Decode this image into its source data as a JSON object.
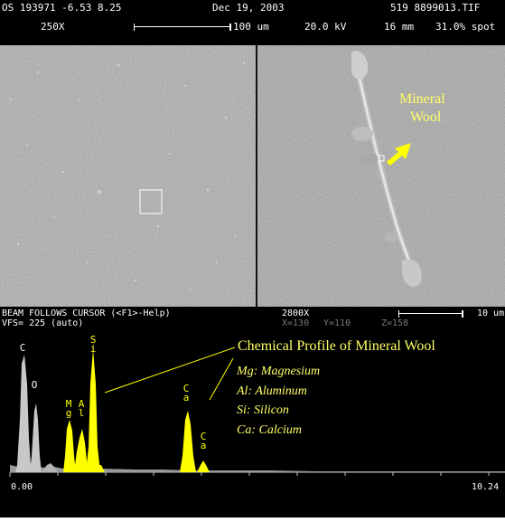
{
  "header": {
    "line1": {
      "left": "OS 193971 -6.53 8.25",
      "date": "Dec 19, 2003",
      "file": "519 8899013.TIF"
    },
    "line2": {
      "magnification": "250X",
      "scale": "100 um",
      "voltage": "20.0 kV",
      "distance": "16 mm",
      "spot": "31.0% spot"
    }
  },
  "right_panel": {
    "annotation_line1": "Mineral",
    "annotation_line2": "Wool"
  },
  "status": {
    "line1": "BEAM FOLLOWS CURSOR (<F1>-Help)",
    "line2": "VFS= 225 (auto)",
    "magnification": "2800X",
    "scale": "10 um",
    "cursor_x": "X=130",
    "cursor_y": "Y=110",
    "cursor_z": "Z=158"
  },
  "spectrum": {
    "title": "Chemical Profile of Mineral Wool",
    "legend": [
      "Mg: Magnesium",
      "Al: Aluminum",
      "Si: Silicon",
      "Ca: Calcium"
    ],
    "peak_labels": {
      "c": "C",
      "o": "O",
      "mg": "M\ng",
      "al": "A\nl",
      "si": "S\ni",
      "ca1": "C\na",
      "ca2": "C\na"
    },
    "axis_min": "0.00",
    "axis_max": "10.24",
    "colors": {
      "peaks": "#ffff00",
      "background": "#000000",
      "light_elements": "#c8c8c8"
    }
  },
  "chart_data": {
    "type": "area",
    "xlim": [
      0.0,
      10.24
    ],
    "peaks": [
      {
        "label": "C",
        "x": 0.28,
        "relative_height": 0.82
      },
      {
        "label": "O",
        "x": 0.53,
        "relative_height": 0.42
      },
      {
        "label": "Mg",
        "x": 1.25,
        "relative_height": 0.36
      },
      {
        "label": "Al",
        "x": 1.49,
        "relative_height": 0.31
      },
      {
        "label": "Si",
        "x": 1.74,
        "relative_height": 0.95
      },
      {
        "label": "Ca",
        "x": 3.69,
        "relative_height": 0.45
      },
      {
        "label": "Ca",
        "x": 4.01,
        "relative_height": 0.1
      }
    ]
  }
}
